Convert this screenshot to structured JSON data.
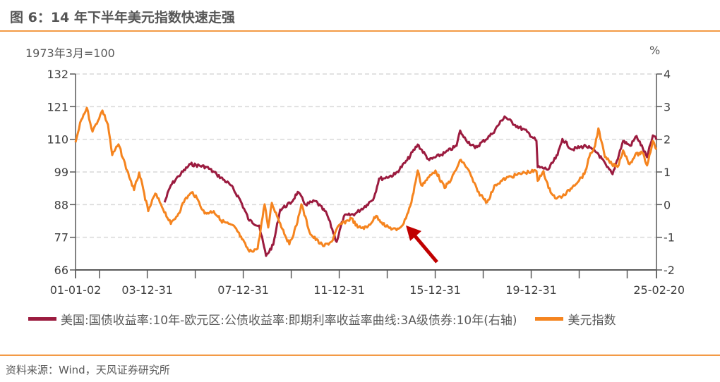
{
  "header": {
    "title": "图 6：14 年下半年美元指数快速走强"
  },
  "footer": {
    "source": "资料来源：Wind，天风证券研究所"
  },
  "chart_data": {
    "type": "line",
    "title": "图 6：14 年下半年美元指数快速走强",
    "ylabel_left": "1973年3月=100",
    "ylabel_right": "%",
    "ylim_left": [
      66,
      132
    ],
    "ylim_right": [
      -2,
      4
    ],
    "yticks_left": [
      "132",
      "121",
      "110",
      "99",
      "88",
      "77",
      "66"
    ],
    "yticks_right": [
      "4",
      "3",
      "2",
      "1",
      "0",
      "-1",
      "-2"
    ],
    "xlim": [
      2001.0,
      2025.21
    ],
    "xtick_labels": [
      {
        "x": 2001.0,
        "label": "01-01-02"
      },
      {
        "x": 2003.99,
        "label": "03-12-31"
      },
      {
        "x": 2007.99,
        "label": "07-12-31"
      },
      {
        "x": 2011.99,
        "label": "11-12-31"
      },
      {
        "x": 2015.99,
        "label": "15-12-31"
      },
      {
        "x": 2019.99,
        "label": "19-12-31"
      },
      {
        "x": 2025.14,
        "label": "25-02-20"
      }
    ],
    "xtick_marks": [
      2001.0,
      2002.0,
      2003.99,
      2005.99,
      2007.99,
      2009.99,
      2011.99,
      2013.99,
      2015.99,
      2017.99,
      2019.99,
      2021.99,
      2023.99,
      2025.21
    ],
    "grid": "horizontal-dashed",
    "legend_position": "bottom",
    "series": [
      {
        "name": "美国:国债收益率:10年-欧元区:公债收益率:即期利率收益率曲线:3A级债券:10年(右轴)",
        "axis": "right",
        "color": "#9b1b3f",
        "points": [
          [
            2004.71,
            0.07
          ],
          [
            2004.97,
            0.59
          ],
          [
            2005.29,
            0.87
          ],
          [
            2005.79,
            1.24
          ],
          [
            2006.47,
            1.15
          ],
          [
            2006.88,
            0.93
          ],
          [
            2007.47,
            0.59
          ],
          [
            2007.85,
            0.16
          ],
          [
            2008.24,
            -0.49
          ],
          [
            2008.65,
            -0.64
          ],
          [
            2008.94,
            -1.57
          ],
          [
            2009.24,
            -1.23
          ],
          [
            2009.53,
            -0.15
          ],
          [
            2010.0,
            0.07
          ],
          [
            2010.26,
            0.39
          ],
          [
            2010.59,
            0.0
          ],
          [
            2011.0,
            0.11
          ],
          [
            2011.47,
            -0.28
          ],
          [
            2011.88,
            -1.14
          ],
          [
            2012.18,
            -0.36
          ],
          [
            2012.65,
            -0.28
          ],
          [
            2013.15,
            0.0
          ],
          [
            2013.44,
            0.22
          ],
          [
            2013.65,
            0.8
          ],
          [
            2013.82,
            0.8
          ],
          [
            2014.32,
            0.93
          ],
          [
            2014.82,
            1.36
          ],
          [
            2015.26,
            1.84
          ],
          [
            2015.74,
            1.36
          ],
          [
            2016.38,
            1.58
          ],
          [
            2016.88,
            1.8
          ],
          [
            2017.03,
            2.27
          ],
          [
            2017.18,
            2.06
          ],
          [
            2017.65,
            1.73
          ],
          [
            2018.35,
            2.16
          ],
          [
            2018.88,
            2.7
          ],
          [
            2019.32,
            2.44
          ],
          [
            2019.82,
            2.23
          ],
          [
            2020.21,
            1.95
          ],
          [
            2020.26,
            1.15
          ],
          [
            2020.71,
            1.08
          ],
          [
            2021.09,
            1.52
          ],
          [
            2021.29,
            2.01
          ],
          [
            2021.68,
            1.69
          ],
          [
            2022.26,
            1.8
          ],
          [
            2022.76,
            1.58
          ],
          [
            2023.15,
            1.15
          ],
          [
            2023.38,
            0.93
          ],
          [
            2023.82,
            1.95
          ],
          [
            2024.12,
            1.8
          ],
          [
            2024.38,
            2.1
          ],
          [
            2024.82,
            1.45
          ],
          [
            2025.06,
            2.12
          ],
          [
            2025.21,
            1.99
          ]
        ]
      },
      {
        "name": "美元指数",
        "axis": "left",
        "color": "#f5841f",
        "points": [
          [
            2001.0,
            109
          ],
          [
            2001.24,
            116.6
          ],
          [
            2001.47,
            120.6
          ],
          [
            2001.71,
            112.6
          ],
          [
            2002.12,
            119.7
          ],
          [
            2002.35,
            115
          ],
          [
            2002.53,
            104.7
          ],
          [
            2002.79,
            108.3
          ],
          [
            2003.15,
            99.5
          ],
          [
            2003.44,
            92.9
          ],
          [
            2003.65,
            98.8
          ],
          [
            2004.03,
            85.8
          ],
          [
            2004.32,
            91.7
          ],
          [
            2004.56,
            88.1
          ],
          [
            2004.97,
            81.5
          ],
          [
            2005.29,
            85
          ],
          [
            2005.56,
            89.8
          ],
          [
            2005.88,
            92.2
          ],
          [
            2006.15,
            88.8
          ],
          [
            2006.38,
            85
          ],
          [
            2006.76,
            85.8
          ],
          [
            2007.06,
            82.7
          ],
          [
            2007.65,
            80.3
          ],
          [
            2007.94,
            76.3
          ],
          [
            2008.24,
            72.2
          ],
          [
            2008.59,
            73.2
          ],
          [
            2008.88,
            88.1
          ],
          [
            2009.03,
            80.3
          ],
          [
            2009.18,
            88.6
          ],
          [
            2009.53,
            81.7
          ],
          [
            2009.91,
            74.6
          ],
          [
            2010.21,
            81
          ],
          [
            2010.41,
            88.1
          ],
          [
            2010.79,
            78
          ],
          [
            2011.32,
            74
          ],
          [
            2011.68,
            75.6
          ],
          [
            2011.97,
            81
          ],
          [
            2012.5,
            83.4
          ],
          [
            2012.76,
            80.3
          ],
          [
            2013.15,
            80.3
          ],
          [
            2013.53,
            84.2
          ],
          [
            2013.94,
            80.6
          ],
          [
            2014.38,
            79.4
          ],
          [
            2014.68,
            81.7
          ],
          [
            2015.0,
            88.8
          ],
          [
            2015.26,
            99.5
          ],
          [
            2015.41,
            94.5
          ],
          [
            2016.0,
            99.5
          ],
          [
            2016.38,
            93.6
          ],
          [
            2016.68,
            96.9
          ],
          [
            2017.06,
            103.1
          ],
          [
            2017.35,
            100
          ],
          [
            2017.76,
            92.4
          ],
          [
            2018.15,
            88.8
          ],
          [
            2018.5,
            94.7
          ],
          [
            2018.94,
            96.9
          ],
          [
            2019.71,
            98.8
          ],
          [
            2020.21,
            99.3
          ],
          [
            2020.26,
            96
          ],
          [
            2020.5,
            99.3
          ],
          [
            2020.71,
            93.6
          ],
          [
            2021.03,
            90
          ],
          [
            2021.38,
            91.2
          ],
          [
            2021.76,
            94.5
          ],
          [
            2022.21,
            98.3
          ],
          [
            2022.41,
            104
          ],
          [
            2022.65,
            107.8
          ],
          [
            2022.79,
            113.7
          ],
          [
            2022.91,
            109.5
          ],
          [
            2023.06,
            104
          ],
          [
            2023.35,
            101.6
          ],
          [
            2023.59,
            100.7
          ],
          [
            2023.82,
            106.3
          ],
          [
            2024.09,
            101.6
          ],
          [
            2024.32,
            104.7
          ],
          [
            2024.62,
            105.5
          ],
          [
            2024.82,
            101.2
          ],
          [
            2025.06,
            109.5
          ],
          [
            2025.21,
            106.6
          ]
        ]
      }
    ],
    "annotation": {
      "type": "arrow",
      "color": "#c00000",
      "points_to": [
        2014.68,
        81.7
      ]
    }
  }
}
